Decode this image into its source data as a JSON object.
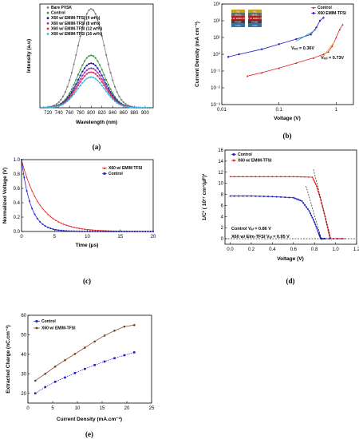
{
  "panels": [
    "(a)",
    "(b)",
    "(c)",
    "(d)",
    "(e)"
  ],
  "chart_data": [
    {
      "type": "line",
      "id": "a",
      "xlabel": "Wavelength (nm)",
      "ylabel": "Intensity (a.u)",
      "xlim": [
        705,
        915
      ],
      "xticks": [
        720,
        740,
        760,
        780,
        800,
        820,
        840,
        860,
        880,
        900
      ],
      "ylim": [
        0,
        1.05
      ],
      "legend_position": "top-left",
      "series": [
        {
          "name": "Bare PVSK",
          "color": "#7a7a7a",
          "peak": 1.0
        },
        {
          "name": "Control",
          "color": "#2e9e2e",
          "peak": 0.53
        },
        {
          "name": "X60 w/ EMIM-TFSI (4 wt%)",
          "color": "#1a1aa8",
          "peak": 0.45
        },
        {
          "name": "X60 w/ EMIM-TFSI (8 wt%)",
          "color": "#9b2fb5",
          "peak": 0.4
        },
        {
          "name": "X60 w/ EMIM-TFSI (12 wt%)",
          "color": "#e0284a",
          "peak": 0.36
        },
        {
          "name": "X60 w/ EMIM-TFSI (16 wt%)",
          "color": "#34b8e8",
          "peak": 0.31
        }
      ]
    },
    {
      "type": "line",
      "id": "b",
      "xlabel": "Voltage (V)",
      "ylabel": "Current Density (mA cm⁻²)",
      "xscale": "log",
      "yscale": "log",
      "xlim": [
        0.01,
        2
      ],
      "ylim": [
        0.001,
        1000
      ],
      "xtick_labels": [
        "0.01",
        "0.1",
        "1"
      ],
      "ytick_labels": [
        "10⁻³",
        "10⁻²",
        "10⁻¹",
        "10⁰",
        "10¹",
        "10²",
        "10³"
      ],
      "legend_position": "top-right",
      "annotations": [
        "Vₜₒₗ = 0.36V",
        "Vₜₒₗ = 0.73V"
      ],
      "inset_labels": [
        "Au",
        "MoO₃",
        "X60 w/ EMIM-TFSI",
        "PVSK",
        "FTO"
      ],
      "series": [
        {
          "name": "Control",
          "color": "#e02020",
          "x": [
            0.028,
            0.05,
            0.1,
            0.2,
            0.4,
            0.6,
            0.73,
            0.85,
            1.0,
            1.15,
            1.3
          ],
          "y": [
            0.05,
            0.08,
            0.15,
            0.3,
            0.6,
            1.0,
            1.4,
            3,
            10,
            30,
            60
          ]
        },
        {
          "name": "X60 EMIM-TFSI",
          "color": "#2020c8",
          "x": [
            0.013,
            0.02,
            0.05,
            0.1,
            0.2,
            0.36,
            0.45,
            0.52,
            0.6
          ],
          "y": [
            0.7,
            1.0,
            2.0,
            4.0,
            8.0,
            15,
            40,
            100,
            150
          ]
        }
      ]
    },
    {
      "type": "line",
      "id": "c",
      "xlabel": "Time (μs)",
      "ylabel": "Normalized Voltage (V)",
      "xlim": [
        0,
        20
      ],
      "ylim": [
        0,
        1
      ],
      "xticks": [
        0,
        5,
        10,
        15,
        20
      ],
      "yticks": [
        "0.0",
        "0.2",
        "0.4",
        "0.6",
        "0.8",
        "1.0"
      ],
      "legend_position": "top-right",
      "series": [
        {
          "name": "X60 w/ EMIM TFSI",
          "color": "#e02020",
          "tau": 2.8
        },
        {
          "name": "Control",
          "color": "#2020c8",
          "tau": 1.4
        }
      ]
    },
    {
      "type": "line",
      "id": "d",
      "xlabel": "Voltage (V)",
      "ylabel": "1/C² ( 10¹⁷ cm⁴/μF)²",
      "xlim": [
        -0.05,
        1.2
      ],
      "ylim": [
        -1,
        16
      ],
      "xticks": [
        "0.0",
        "0.2",
        "0.4",
        "0.6",
        "0.8",
        "1.0",
        "1.2"
      ],
      "yticks": [
        "0",
        "2",
        "4",
        "6",
        "8",
        "10",
        "12",
        "14",
        "16"
      ],
      "legend_position": "top-left",
      "annotations": [
        "Control Vₑₗ = 0.86 V",
        "X60 w/ EIm-TFSI Vₑₗ = 0.95 V"
      ],
      "series": [
        {
          "name": "Control",
          "color": "#2020c8",
          "x": [
            0.0,
            0.2,
            0.4,
            0.6,
            0.68,
            0.75,
            0.8,
            0.84,
            0.86,
            0.9,
            1.1
          ],
          "y": [
            7.7,
            7.7,
            7.6,
            7.4,
            6.8,
            5.0,
            3.0,
            1.0,
            0.0,
            0.0,
            0.0
          ]
        },
        {
          "name": "X60 w/ EMIM-TFSI",
          "color": "#e02020",
          "x": [
            0.0,
            0.2,
            0.4,
            0.6,
            0.78,
            0.82,
            0.86,
            0.9,
            0.93,
            0.95,
            1.1
          ],
          "y": [
            11.2,
            11.2,
            11.2,
            11.2,
            11.1,
            9.5,
            7.0,
            4.0,
            1.5,
            0.0,
            0.0
          ]
        }
      ]
    },
    {
      "type": "line",
      "id": "e",
      "xlabel": "Current Density (mA.cm⁻²)",
      "ylabel": "Extracted Charge (nC.cm⁻²)",
      "xlim": [
        0,
        25
      ],
      "ylim": [
        15,
        60
      ],
      "xticks": [
        "0",
        "5",
        "10",
        "15",
        "20",
        "25"
      ],
      "yticks": [
        "20",
        "30",
        "40",
        "50",
        "60"
      ],
      "legend_position": "top-left",
      "series": [
        {
          "name": "Control",
          "color": "#2020c8",
          "x": [
            1.5,
            3.5,
            5.5,
            7.5,
            9.5,
            11.5,
            13.5,
            15.5,
            17.5,
            19.5,
            21.5
          ],
          "y": [
            20,
            23.2,
            25.9,
            28.1,
            30.4,
            32.5,
            34.5,
            36.3,
            38.0,
            39.5,
            41.0
          ]
        },
        {
          "name": "X60 w/ EMIM-TFSI",
          "color": "#7a3a1a",
          "x": [
            1.5,
            3.5,
            5.5,
            7.5,
            9.5,
            11.5,
            13.5,
            15.5,
            17.5,
            19.5,
            21.5
          ],
          "y": [
            26.5,
            30.0,
            33.7,
            37.0,
            40.2,
            43.4,
            46.6,
            49.6,
            52.1,
            54.2,
            55.0
          ]
        }
      ]
    }
  ]
}
